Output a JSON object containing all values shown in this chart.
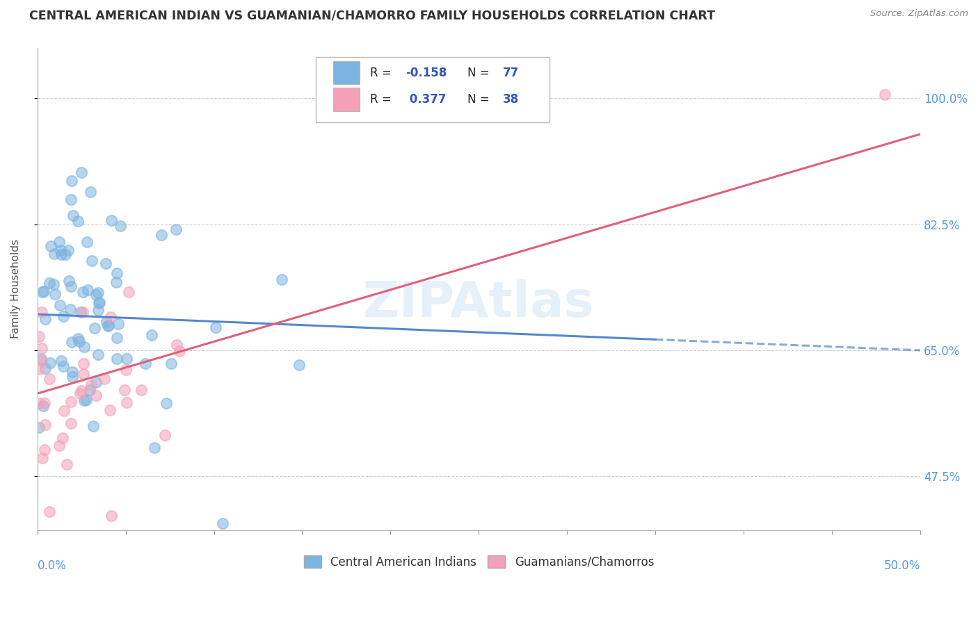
{
  "title": "CENTRAL AMERICAN INDIAN VS GUAMANIAN/CHAMORRO FAMILY HOUSEHOLDS CORRELATION CHART",
  "source": "Source: ZipAtlas.com",
  "ylabel": "Family Households",
  "y_ticks": [
    47.5,
    65.0,
    82.5,
    100.0
  ],
  "xlim": [
    0.0,
    50.0
  ],
  "ylim": [
    40.0,
    107.0
  ],
  "legend_label1": "Central American Indians",
  "legend_label2": "Guamanians/Chamorros",
  "blue_color": "#7cb4e0",
  "pink_color": "#f4a0b8",
  "blue_line_color": "#5588cc",
  "pink_line_color": "#e0607a",
  "title_color": "#333333",
  "axis_color": "#5599dd",
  "watermark": "ZIPAtlas",
  "r_blue": -0.158,
  "n_blue": 77,
  "r_pink": 0.377,
  "n_pink": 38,
  "blue_intercept": 70.5,
  "blue_slope": -0.115,
  "pink_intercept": 58.0,
  "pink_slope": 0.82
}
